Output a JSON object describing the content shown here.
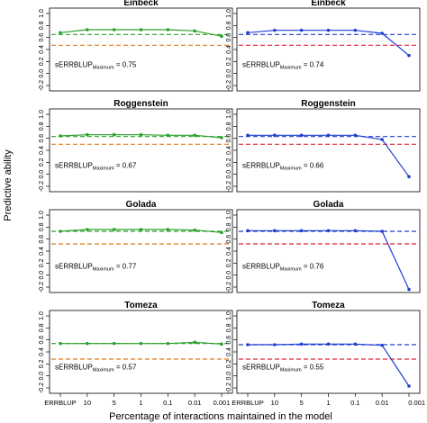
{
  "figure": {
    "ylabel": "Predictive ability",
    "xlabel": "Percentage of interactions maintained in the model"
  },
  "colors": {
    "green_series": "#2ca02c",
    "blue_series": "#1f3fd1",
    "orange_reference": "#e07b1a",
    "red_reference": "#e0203a",
    "green_top_reference": "#2ca02c",
    "blue_top_reference": "#1f3fd1"
  },
  "chart_data": [
    {
      "type": "line",
      "row": 0,
      "col": 0,
      "title": "Einbeck",
      "annotation_prefix": "sERRBLUP",
      "annotation_sub": "Maximum",
      "annotation_value": "= 0.75",
      "categories": [
        "ERRBLUP",
        "10",
        "5",
        "1",
        "0.1",
        "0.01",
        "0.001"
      ],
      "ylim": [
        -0.2,
        1.0
      ],
      "yticks": [
        "-0.2",
        "0.0",
        "0.2",
        "0.4",
        "0.6",
        "0.8",
        "1.0"
      ],
      "series": [
        {
          "values": [
            0.68,
            0.73,
            0.73,
            0.73,
            0.73,
            0.71,
            0.62
          ]
        }
      ],
      "hlines": [
        {
          "value": 0.65,
          "color_key": "green_top_reference"
        },
        {
          "value": 0.47,
          "color_key": "orange_reference"
        }
      ]
    },
    {
      "type": "line",
      "row": 0,
      "col": 1,
      "title": "Einbeck",
      "annotation_prefix": "sERRBLUP",
      "annotation_sub": "Maximum",
      "annotation_value": "= 0.74",
      "categories": [
        "ERRBLUP",
        "10",
        "5",
        "1",
        "0.1",
        "0.01",
        "0.001"
      ],
      "ylim": [
        -0.2,
        1.0
      ],
      "yticks": [
        "-0.2",
        "0.0",
        "0.2",
        "0.4",
        "0.6",
        "0.8",
        "1.0"
      ],
      "series": [
        {
          "values": [
            0.68,
            0.72,
            0.72,
            0.72,
            0.72,
            0.67,
            0.3
          ]
        }
      ],
      "hlines": [
        {
          "value": 0.65,
          "color_key": "blue_top_reference"
        },
        {
          "value": 0.47,
          "color_key": "red_reference"
        }
      ]
    },
    {
      "type": "line",
      "row": 1,
      "col": 0,
      "title": "Roggenstein",
      "annotation_prefix": "sERRBLUP",
      "annotation_sub": "Maximum",
      "annotation_value": "= 0.67",
      "categories": [
        "ERRBLUP",
        "10",
        "5",
        "1",
        "0.1",
        "0.01",
        "0.001"
      ],
      "ylim": [
        -0.2,
        1.0
      ],
      "yticks": [
        "-0.2",
        "0.0",
        "0.2",
        "0.4",
        "0.6",
        "0.8",
        "1.0"
      ],
      "series": [
        {
          "values": [
            0.64,
            0.66,
            0.66,
            0.66,
            0.65,
            0.65,
            0.61
          ]
        }
      ],
      "hlines": [
        {
          "value": 0.63,
          "color_key": "green_top_reference"
        },
        {
          "value": 0.5,
          "color_key": "orange_reference"
        }
      ]
    },
    {
      "type": "line",
      "row": 1,
      "col": 1,
      "title": "Roggenstein",
      "annotation_prefix": "sERRBLUP",
      "annotation_sub": "Maximum",
      "annotation_value": "= 0.66",
      "categories": [
        "ERRBLUP",
        "10",
        "5",
        "1",
        "0.1",
        "0.01",
        "0.001"
      ],
      "ylim": [
        -0.2,
        1.0
      ],
      "yticks": [
        "-0.2",
        "0.0",
        "0.2",
        "0.4",
        "0.6",
        "0.8",
        "1.0"
      ],
      "series": [
        {
          "values": [
            0.65,
            0.65,
            0.65,
            0.65,
            0.65,
            0.58,
            -0.04
          ]
        }
      ],
      "hlines": [
        {
          "value": 0.63,
          "color_key": "blue_top_reference"
        },
        {
          "value": 0.5,
          "color_key": "red_reference"
        }
      ]
    },
    {
      "type": "line",
      "row": 2,
      "col": 0,
      "title": "Golada",
      "annotation_prefix": "sERRBLUP",
      "annotation_sub": "Maximum",
      "annotation_value": "= 0.77",
      "categories": [
        "ERRBLUP",
        "10",
        "5",
        "1",
        "0.1",
        "0.01",
        "0.001"
      ],
      "ylim": [
        -0.2,
        1.0
      ],
      "yticks": [
        "-0.2",
        "0.0",
        "0.2",
        "0.4",
        "0.6",
        "0.8",
        "1.0"
      ],
      "series": [
        {
          "values": [
            0.73,
            0.76,
            0.76,
            0.76,
            0.76,
            0.75,
            0.71
          ]
        }
      ],
      "hlines": [
        {
          "value": 0.73,
          "color_key": "green_top_reference"
        },
        {
          "value": 0.52,
          "color_key": "orange_reference"
        }
      ]
    },
    {
      "type": "line",
      "row": 2,
      "col": 1,
      "title": "Golada",
      "annotation_prefix": "sERRBLUP",
      "annotation_sub": "Maximum",
      "annotation_value": "= 0.76",
      "categories": [
        "ERRBLUP",
        "10",
        "5",
        "1",
        "0.1",
        "0.01",
        "0.001"
      ],
      "ylim": [
        -0.2,
        1.0
      ],
      "yticks": [
        "-0.2",
        "0.0",
        "0.2",
        "0.4",
        "0.6",
        "0.8",
        "1.0"
      ],
      "series": [
        {
          "values": [
            0.74,
            0.74,
            0.74,
            0.74,
            0.74,
            0.73,
            -0.24
          ]
        }
      ],
      "hlines": [
        {
          "value": 0.73,
          "color_key": "blue_top_reference"
        },
        {
          "value": 0.52,
          "color_key": "red_reference"
        }
      ]
    },
    {
      "type": "line",
      "row": 3,
      "col": 0,
      "title": "Tomeza",
      "annotation_prefix": "sERRBLUP",
      "annotation_sub": "Maximum",
      "annotation_value": "= 0.57",
      "categories": [
        "ERRBLUP",
        "10",
        "5",
        "1",
        "0.1",
        "0.01",
        "0.001"
      ],
      "ylim": [
        -0.2,
        1.0
      ],
      "yticks": [
        "-0.2",
        "0.0",
        "0.2",
        "0.4",
        "0.6",
        "0.8",
        "1.0"
      ],
      "series": [
        {
          "values": [
            0.54,
            0.54,
            0.54,
            0.54,
            0.54,
            0.56,
            0.53
          ]
        }
      ],
      "hlines": [
        {
          "value": 0.54,
          "color_key": "green_top_reference"
        },
        {
          "value": 0.28,
          "color_key": "orange_reference"
        }
      ]
    },
    {
      "type": "line",
      "row": 3,
      "col": 1,
      "title": "Tomeza",
      "annotation_prefix": "sERRBLUP",
      "annotation_sub": "Maximum",
      "annotation_value": "= 0.55",
      "categories": [
        "ERRBLUP",
        "10",
        "5",
        "1",
        "0.1",
        "0.01",
        "0.001"
      ],
      "ylim": [
        -0.2,
        1.0
      ],
      "yticks": [
        "-0.2",
        "0.0",
        "0.2",
        "0.4",
        "0.6",
        "0.8",
        "1.0"
      ],
      "series": [
        {
          "values": [
            0.52,
            0.52,
            0.53,
            0.53,
            0.53,
            0.51,
            -0.17
          ]
        }
      ],
      "hlines": [
        {
          "value": 0.52,
          "color_key": "blue_top_reference"
        },
        {
          "value": 0.28,
          "color_key": "red_reference"
        }
      ]
    }
  ]
}
